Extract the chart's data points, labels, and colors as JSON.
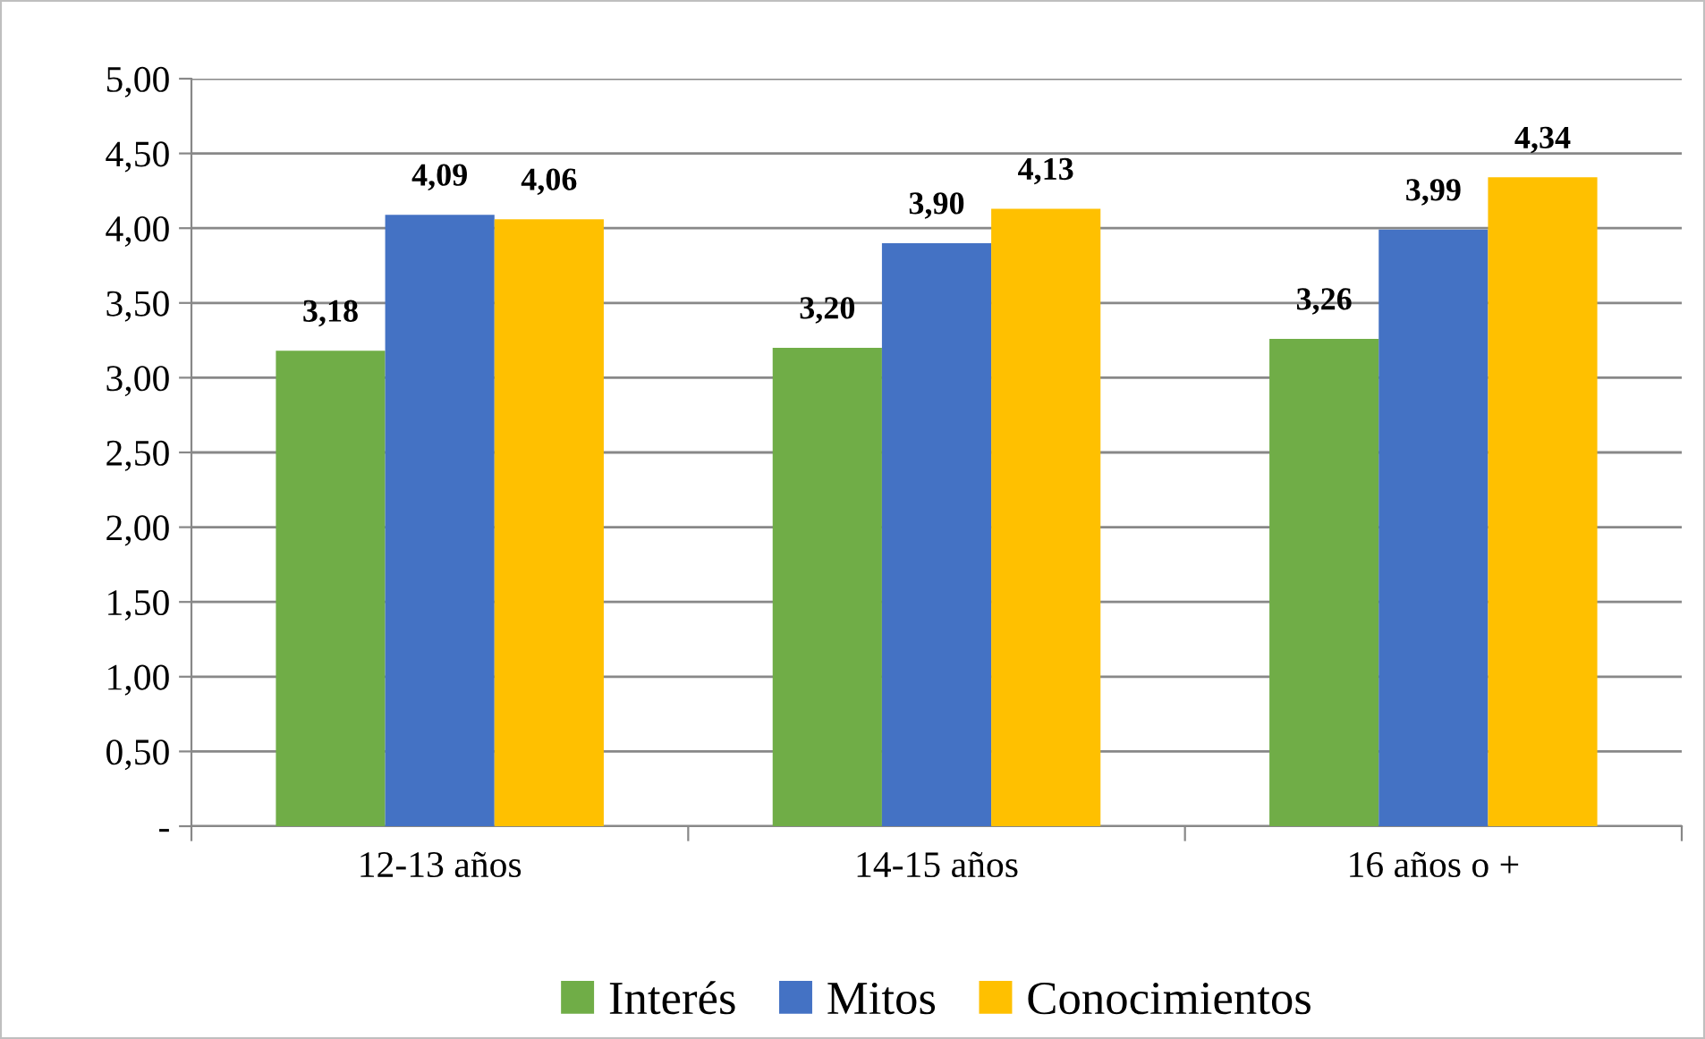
{
  "chart_data": {
    "type": "bar",
    "categories": [
      "12-13 años",
      "14-15 años",
      "16 años o +"
    ],
    "series": [
      {
        "name": "Interés",
        "color": "#70ad47",
        "values": [
          3.18,
          3.2,
          3.26
        ],
        "value_labels": [
          "3,18",
          "3,20",
          "3,26"
        ]
      },
      {
        "name": "Mitos",
        "color": "#4472c4",
        "values": [
          4.09,
          3.9,
          3.99
        ],
        "value_labels": [
          "4,09",
          "3,90",
          "3,99"
        ]
      },
      {
        "name": "Conocimientos",
        "color": "#ffc000",
        "values": [
          4.06,
          4.13,
          4.34
        ],
        "value_labels": [
          "4,06",
          "4,13",
          "4,34"
        ]
      }
    ],
    "ylim": [
      0,
      5
    ],
    "yticks": [
      {
        "value": 0,
        "label": "-"
      },
      {
        "value": 0.5,
        "label": "0,50"
      },
      {
        "value": 1,
        "label": "1,00"
      },
      {
        "value": 1.5,
        "label": "1,50"
      },
      {
        "value": 2,
        "label": "2,00"
      },
      {
        "value": 2.5,
        "label": "2,50"
      },
      {
        "value": 3,
        "label": "3,00"
      },
      {
        "value": 3.5,
        "label": "3,50"
      },
      {
        "value": 4,
        "label": "4,00"
      },
      {
        "value": 4.5,
        "label": "4,50"
      },
      {
        "value": 5,
        "label": "5,00"
      }
    ],
    "grid": "y",
    "legend": "bottom"
  }
}
